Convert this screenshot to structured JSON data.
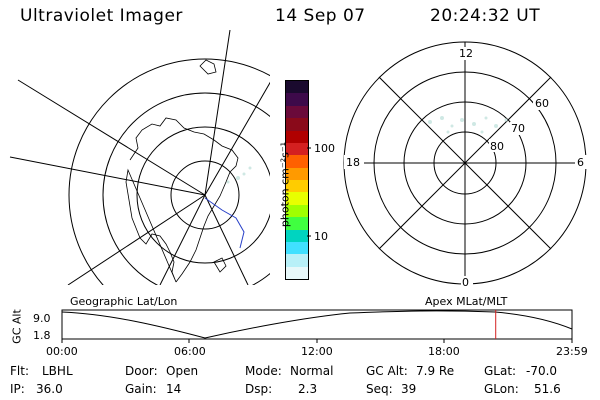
{
  "header": {
    "title": "Ultraviolet Imager",
    "date": "14 Sep 07",
    "time": "20:24:32 UT"
  },
  "colorbar": {
    "unit": "photon cm⁻²s⁻¹",
    "ticks": [
      "100",
      "10"
    ],
    "colors": [
      "#1a0a2e",
      "#3d0a4a",
      "#6a0a3a",
      "#8a0a1a",
      "#b00000",
      "#d42020",
      "#ff6000",
      "#ff9a00",
      "#ffcc00",
      "#e8ff00",
      "#a0ff00",
      "#40ff40",
      "#00d4c0",
      "#40e0ff",
      "#b8f0f8",
      "#e8f8fa"
    ]
  },
  "polar_plot": {
    "mlt_labels": {
      "top": "12",
      "right": "6",
      "bottom": "0",
      "left": "18"
    },
    "lat_labels": [
      "80",
      "70",
      "60"
    ]
  },
  "timeline": {
    "left_title": "Geographic Lat/Lon",
    "right_title": "Apex MLat/MLT",
    "axis_label": "GC Alt",
    "y_max": "9.0",
    "y_min": "1.8",
    "x_ticks": [
      "00:00",
      "06:00",
      "12:00",
      "18:00",
      "23:59"
    ],
    "current_time_hours": 20.41
  },
  "info": {
    "flt_label": "Flt:",
    "flt_value": "LBHL",
    "ip_label": "IP:",
    "ip_value": "36.0",
    "door_label": "Door:",
    "door_value": "Open",
    "gain_label": "Gain:",
    "gain_value": "14",
    "mode_label": "Mode:",
    "mode_value": "Normal",
    "dsp_label": "Dsp:",
    "dsp_value": "2.3",
    "gcalt_label": "GC Alt:",
    "gcalt_value": "7.9 Re",
    "seq_label": "Seq:",
    "seq_value": "39",
    "glat_label": "GLat:",
    "glat_value": "-70.0",
    "glon_label": "GLon:",
    "glon_value": "51.6"
  }
}
